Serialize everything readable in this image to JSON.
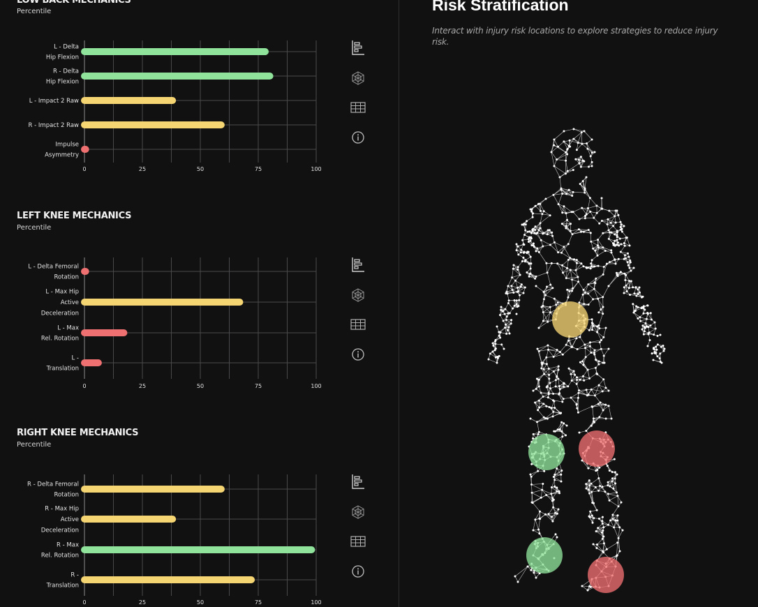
{
  "colors": {
    "green": "#8fe39a",
    "yellow": "#f5d572",
    "red": "#ef7070",
    "background": "#111112",
    "grid": "#4a4a4c"
  },
  "icons": [
    "bar-chart-icon",
    "3d-model-icon",
    "table-icon",
    "info-icon"
  ],
  "sections": [
    {
      "title": "LOW BACK MECHANICS",
      "subtitle": "Percentile",
      "chart_labels": [
        [
          "L - Delta",
          "Hip Flexion"
        ],
        [
          "R - Delta",
          "Hip Flexion"
        ],
        [
          "L - Impact 2 Raw"
        ],
        [
          "R - Impact 2 Raw"
        ],
        [
          "Impulse",
          "Asymmetry"
        ]
      ]
    },
    {
      "title": "LEFT KNEE MECHANICS",
      "subtitle": "Percentile",
      "chart_labels": [
        [
          "L - Delta Femoral",
          "Rotation"
        ],
        [
          "L - Max Hip",
          "Active",
          "Deceleration"
        ],
        [
          "L - Max",
          "Rel. Rotation"
        ],
        [
          "L -",
          "Translation"
        ]
      ]
    },
    {
      "title": "RIGHT KNEE MECHANICS",
      "subtitle": "Percentile",
      "chart_labels": [
        [
          "R - Delta Femoral",
          "Rotation"
        ],
        [
          "R - Max Hip",
          "Active",
          "Deceleration"
        ],
        [
          "R - Max",
          "Rel. Rotation"
        ],
        [
          "R -",
          "Translation"
        ]
      ]
    }
  ],
  "chart_data": [
    {
      "type": "bar",
      "orientation": "horizontal",
      "title": "LOW BACK MECHANICS",
      "subtitle": "Percentile",
      "categories": [
        "L - Delta Hip Flexion",
        "R - Delta Hip Flexion",
        "L - Impact 2 Raw",
        "R - Impact 2 Raw",
        "Impulse Asymmetry"
      ],
      "values": [
        78,
        80,
        38,
        59,
        0.5
      ],
      "colors": [
        "green",
        "green",
        "yellow",
        "yellow",
        "red"
      ],
      "xlim": [
        0,
        100
      ],
      "xticks": [
        0,
        25,
        50,
        75,
        100
      ],
      "grid": true
    },
    {
      "type": "bar",
      "orientation": "horizontal",
      "title": "LEFT KNEE MECHANICS",
      "subtitle": "Percentile",
      "categories": [
        "L - Delta Femoral Rotation",
        "L - Max Hip Active Deceleration",
        "L - Max Rel. Rotation",
        "L - Translation"
      ],
      "values": [
        0.5,
        67,
        17,
        6
      ],
      "colors": [
        "red",
        "yellow",
        "red",
        "red"
      ],
      "xlim": [
        0,
        100
      ],
      "xticks": [
        0,
        25,
        50,
        75,
        100
      ],
      "grid": true
    },
    {
      "type": "bar",
      "orientation": "horizontal",
      "title": "RIGHT KNEE MECHANICS",
      "subtitle": "Percentile",
      "categories": [
        "R - Delta Femoral Rotation",
        "R - Max Hip Active Deceleration",
        "R - Max Rel. Rotation",
        "R - Translation"
      ],
      "values": [
        59,
        38,
        98,
        72
      ],
      "colors": [
        "yellow",
        "yellow",
        "green",
        "yellow"
      ],
      "xlim": [
        0,
        100
      ],
      "xticks": [
        0,
        25,
        50,
        75,
        100
      ],
      "grid": true
    }
  ],
  "risk": {
    "title": "Risk Stratification",
    "subtitle": "Interact with injury risk locations to explore strategies to reduce injury risk.",
    "hotspots": [
      {
        "name": "low-back",
        "status": "yellow"
      },
      {
        "name": "right-knee",
        "status": "green"
      },
      {
        "name": "left-knee",
        "status": "red"
      },
      {
        "name": "right-ankle",
        "status": "green"
      },
      {
        "name": "left-ankle",
        "status": "red"
      }
    ]
  }
}
